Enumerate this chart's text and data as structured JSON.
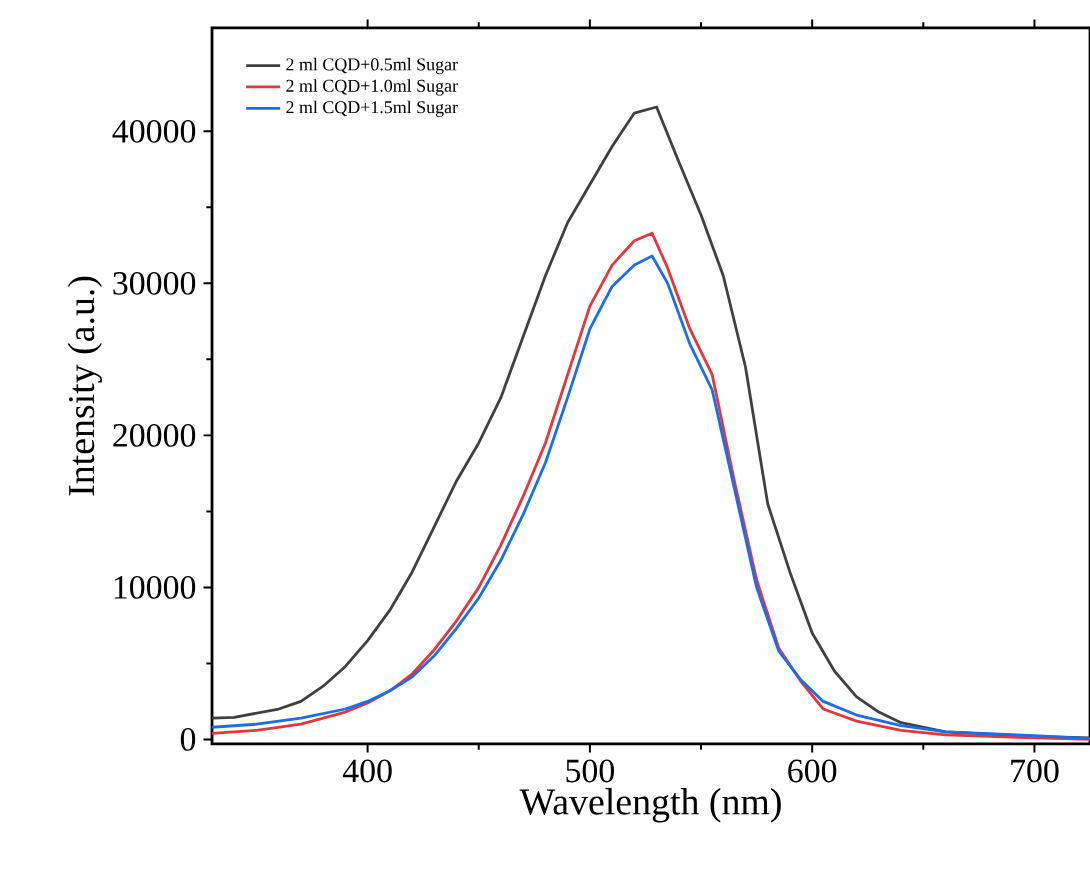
{
  "chart_data": {
    "type": "line",
    "xlabel": "Wavelength (nm)",
    "ylabel": "Intensity (a.u.)",
    "xlim": [
      330,
      725
    ],
    "ylim": [
      -300,
      46800
    ],
    "xticks": [
      400,
      500,
      600,
      700
    ],
    "yticks": [
      0,
      10000,
      20000,
      30000,
      40000
    ],
    "legend": "top left",
    "grid": false,
    "marker": "none",
    "line_style": "solid",
    "series": [
      {
        "name": "2 ml CQD+0.5ml Sugar",
        "color": "#404040",
        "x": [
          330,
          340,
          360,
          370,
          380,
          390,
          400,
          410,
          420,
          430,
          440,
          450,
          460,
          470,
          480,
          490,
          500,
          510,
          520,
          530,
          540,
          550,
          560,
          570,
          580,
          590,
          600,
          610,
          620,
          630,
          640,
          650,
          660,
          680,
          700,
          725
        ],
        "values": [
          1400,
          1450,
          2000,
          2500,
          3500,
          4800,
          6500,
          8500,
          11000,
          14000,
          17000,
          19500,
          22500,
          26500,
          30500,
          34000,
          36500,
          39000,
          41200,
          41600,
          38000,
          34500,
          30500,
          24500,
          15500,
          11000,
          7000,
          4500,
          2800,
          1800,
          1100,
          800,
          500,
          350,
          200,
          100
        ]
      },
      {
        "name": "2 ml CQD+1.0ml Sugar",
        "color": "#e8353a",
        "x": [
          330,
          350,
          370,
          390,
          400,
          410,
          420,
          430,
          440,
          450,
          460,
          470,
          480,
          490,
          500,
          510,
          520,
          528,
          535,
          545,
          555,
          565,
          575,
          585,
          595,
          605,
          620,
          640,
          660,
          700,
          725
        ],
        "values": [
          400,
          600,
          1000,
          1800,
          2400,
          3200,
          4300,
          5900,
          7800,
          10000,
          12800,
          16000,
          19500,
          24000,
          28500,
          31200,
          32800,
          33300,
          31000,
          27000,
          24000,
          17000,
          10500,
          6000,
          3800,
          2000,
          1200,
          600,
          300,
          100,
          0
        ]
      },
      {
        "name": "2 ml CQD+1.5ml Sugar",
        "color": "#1a6ee8",
        "x": [
          330,
          350,
          370,
          390,
          400,
          410,
          420,
          430,
          440,
          450,
          460,
          470,
          480,
          490,
          500,
          510,
          520,
          528,
          535,
          545,
          555,
          565,
          575,
          585,
          595,
          605,
          620,
          640,
          660,
          700,
          725
        ],
        "values": [
          800,
          1000,
          1400,
          2000,
          2500,
          3200,
          4100,
          5500,
          7300,
          9300,
          11800,
          14800,
          18200,
          22500,
          27000,
          29800,
          31200,
          31800,
          30000,
          26000,
          23000,
          16500,
          10000,
          5800,
          3900,
          2500,
          1600,
          900,
          500,
          250,
          50
        ]
      }
    ]
  }
}
